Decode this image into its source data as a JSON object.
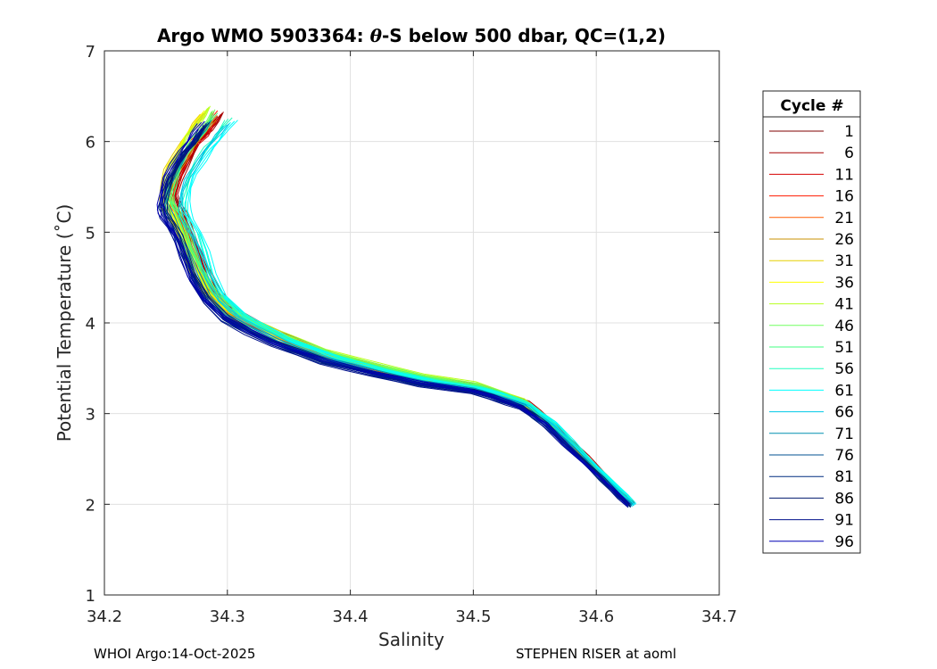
{
  "chart_data": {
    "type": "line",
    "title_prefix": "Argo WMO 5903364: ",
    "title_theta": "θ",
    "title_suffix": "-S below 500 dbar,  QC=(1,2)",
    "xlabel": "Salinity",
    "ylabel": "Potential Temperature (˚C)",
    "xlim": [
      34.2,
      34.7
    ],
    "ylim": [
      1,
      7
    ],
    "xticks": [
      34.2,
      34.3,
      34.4,
      34.5,
      34.6,
      34.7
    ],
    "xtick_labels": [
      "34.2",
      "34.3",
      "34.4",
      "34.5",
      "34.6",
      "34.7"
    ],
    "yticks": [
      1,
      2,
      3,
      4,
      5,
      6,
      7
    ],
    "ytick_labels": [
      "1",
      "2",
      "3",
      "4",
      "5",
      "6",
      "7"
    ],
    "grid": true,
    "legend": {
      "title": "Cycle #",
      "placement": "outside-right",
      "entries": [
        {
          "label": "1",
          "color": "#7f0000"
        },
        {
          "label": "6",
          "color": "#a80000"
        },
        {
          "label": "11",
          "color": "#d60000"
        },
        {
          "label": "16",
          "color": "#ff1a00"
        },
        {
          "label": "21",
          "color": "#ff5a00"
        },
        {
          "label": "26",
          "color": "#c89000"
        },
        {
          "label": "31",
          "color": "#e6d000"
        },
        {
          "label": "36",
          "color": "#ffff00"
        },
        {
          "label": "41",
          "color": "#b8ff20"
        },
        {
          "label": "46",
          "color": "#70ff60"
        },
        {
          "label": "51",
          "color": "#40ff80"
        },
        {
          "label": "56",
          "color": "#20ffc0"
        },
        {
          "label": "61",
          "color": "#00ffff"
        },
        {
          "label": "66",
          "color": "#00c8e6"
        },
        {
          "label": "71",
          "color": "#0090b0"
        },
        {
          "label": "76",
          "color": "#005090"
        },
        {
          "label": "81",
          "color": "#002e80"
        },
        {
          "label": "86",
          "color": "#001a6e"
        },
        {
          "label": "91",
          "color": "#00108c"
        },
        {
          "label": "96",
          "color": "#0000b4"
        }
      ]
    },
    "base_profile": {
      "s": [
        34.628,
        34.62,
        34.605,
        34.59,
        34.575,
        34.56,
        34.55,
        34.54,
        34.53,
        34.515,
        34.5,
        34.48,
        34.46,
        34.44,
        34.42,
        34.4,
        34.38,
        34.36,
        34.34,
        34.32,
        34.3,
        34.285,
        34.275,
        34.268,
        34.262,
        34.256,
        34.252,
        34.25,
        34.252,
        34.256,
        34.262,
        34.268,
        34.275,
        34.28,
        34.285
      ],
      "theta": [
        2.0,
        2.1,
        2.3,
        2.5,
        2.7,
        2.9,
        3.0,
        3.1,
        3.15,
        3.22,
        3.28,
        3.32,
        3.36,
        3.42,
        3.48,
        3.55,
        3.62,
        3.72,
        3.82,
        3.95,
        4.1,
        4.3,
        4.55,
        4.8,
        5.0,
        5.15,
        5.25,
        5.35,
        5.5,
        5.65,
        5.8,
        5.95,
        6.05,
        6.15,
        6.25
      ]
    },
    "series": [
      {
        "cycle": 1,
        "color": "#7f0000",
        "ds": 0.006,
        "dt": 0.03
      },
      {
        "cycle": 6,
        "color": "#a80000",
        "ds": 0.008,
        "dt": 0.05
      },
      {
        "cycle": 11,
        "color": "#d60000",
        "ds": 0.005,
        "dt": 0.0
      },
      {
        "cycle": 16,
        "color": "#ff1a00",
        "ds": 0.004,
        "dt": 0.06
      },
      {
        "cycle": 21,
        "color": "#ff5a00",
        "ds": 0.003,
        "dt": 0.02
      },
      {
        "cycle": 26,
        "color": "#c89000",
        "ds": 0.002,
        "dt": -0.02
      },
      {
        "cycle": 31,
        "color": "#e6d000",
        "ds": -0.004,
        "dt": 0.05
      },
      {
        "cycle": 36,
        "color": "#ffff00",
        "ds": -0.002,
        "dt": 0.08
      },
      {
        "cycle": 41,
        "color": "#b8ff20",
        "ds": 0.0,
        "dt": 0.1
      },
      {
        "cycle": 46,
        "color": "#70ff60",
        "ds": 0.003,
        "dt": 0.07
      },
      {
        "cycle": 51,
        "color": "#40ff80",
        "ds": 0.004,
        "dt": 0.04
      },
      {
        "cycle": 56,
        "color": "#20ffc0",
        "ds": 0.012,
        "dt": 0.0
      },
      {
        "cycle": 61,
        "color": "#00ffff",
        "ds": 0.015,
        "dt": -0.02
      },
      {
        "cycle": 66,
        "color": "#00c8e6",
        "ds": 0.01,
        "dt": -0.05
      },
      {
        "cycle": 71,
        "color": "#0090b0",
        "ds": 0.0,
        "dt": -0.02
      },
      {
        "cycle": 76,
        "color": "#005090",
        "ds": -0.002,
        "dt": -0.05
      },
      {
        "cycle": 81,
        "color": "#002e80",
        "ds": -0.003,
        "dt": -0.07
      },
      {
        "cycle": 86,
        "color": "#001a6e",
        "ds": -0.001,
        "dt": -0.04
      },
      {
        "cycle": 91,
        "color": "#00108c",
        "ds": -0.004,
        "dt": -0.08
      },
      {
        "cycle": 96,
        "color": "#0000b4",
        "ds": -0.005,
        "dt": -0.03
      }
    ]
  },
  "footer": {
    "left": "WHOI Argo:14-Oct-2025",
    "right": "STEPHEN RISER at aoml"
  }
}
